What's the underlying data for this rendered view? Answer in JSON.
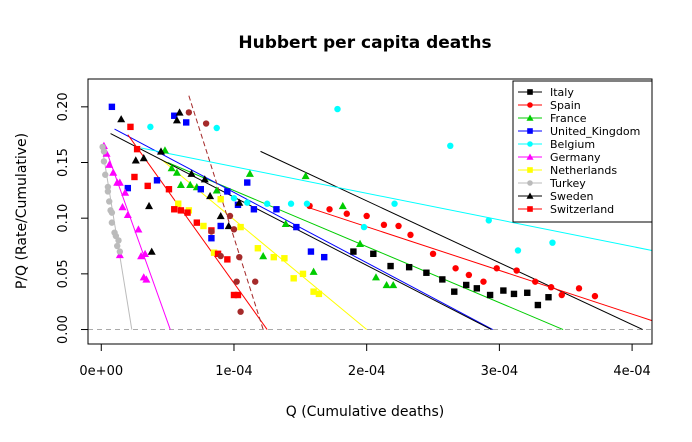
{
  "chart_data": {
    "type": "scatter",
    "title": "Hubbert per capita deaths",
    "xlabel": "Q (Cumulative deaths)",
    "ylabel": "P/Q (Rate/Cumulative)",
    "xlim": [
      -1e-05,
      0.000415
    ],
    "ylim": [
      -0.013,
      0.225
    ],
    "x_ticks": [
      0,
      0.0001,
      0.0002,
      0.0003,
      0.0004
    ],
    "x_tick_labels": [
      "0e+00",
      "1e-04",
      "2e-04",
      "3e-04",
      "4e-04"
    ],
    "y_ticks": [
      0,
      0.05,
      0.1,
      0.15,
      0.2
    ],
    "y_tick_labels": [
      "0.00",
      "0.05",
      "0.10",
      "0.15",
      "0.20"
    ],
    "zero_line": {
      "y": 0,
      "style": "dashed",
      "color": "#aaaaaa"
    },
    "grid": false,
    "legend_position": "top-right",
    "series": [
      {
        "name": "Italy",
        "color": "#000000",
        "marker": "square",
        "fit": {
          "x0": 0.00012,
          "y0": 0.16,
          "x1": 0.000408,
          "y1": 0.0,
          "style": "solid"
        },
        "points": [
          [
            0.00019,
            0.07
          ],
          [
            0.000205,
            0.068
          ],
          [
            0.000218,
            0.057
          ],
          [
            0.000232,
            0.056
          ],
          [
            0.000245,
            0.051
          ],
          [
            0.000257,
            0.045
          ],
          [
            0.000266,
            0.034
          ],
          [
            0.000275,
            0.04
          ],
          [
            0.000283,
            0.037
          ],
          [
            0.000293,
            0.031
          ],
          [
            0.000303,
            0.035
          ],
          [
            0.000311,
            0.032
          ],
          [
            0.000321,
            0.033
          ],
          [
            0.000329,
            0.022
          ],
          [
            0.000337,
            0.029
          ]
        ]
      },
      {
        "name": "Spain",
        "color": "#ff0000",
        "marker": "circle",
        "fit": {
          "x0": 0.000155,
          "y0": 0.11,
          "x1": 0.000415,
          "y1": 0.008,
          "style": "solid"
        },
        "points": [
          [
            0.000157,
            0.111
          ],
          [
            0.000172,
            0.108
          ],
          [
            0.000185,
            0.104
          ],
          [
            0.0002,
            0.102
          ],
          [
            0.000213,
            0.094
          ],
          [
            0.000224,
            0.093
          ],
          [
            0.000233,
            0.085
          ],
          [
            0.00025,
            0.068
          ],
          [
            0.000267,
            0.055
          ],
          [
            0.000277,
            0.049
          ],
          [
            0.000288,
            0.043
          ],
          [
            0.000298,
            0.055
          ],
          [
            0.000313,
            0.053
          ],
          [
            0.000327,
            0.043
          ],
          [
            0.000339,
            0.038
          ],
          [
            0.000347,
            0.031
          ],
          [
            0.00036,
            0.037
          ],
          [
            0.000372,
            0.03
          ]
        ]
      },
      {
        "name": "France",
        "color": "#00cc00",
        "marker": "triangle",
        "fit": {
          "x0": 5e-05,
          "y0": 0.15,
          "x1": 0.000348,
          "y1": 0.0,
          "style": "solid"
        },
        "points": [
          [
            4.8e-05,
            0.161
          ],
          [
            5.3e-05,
            0.145
          ],
          [
            5.7e-05,
            0.141
          ],
          [
            6e-05,
            0.13
          ],
          [
            6.7e-05,
            0.13
          ],
          [
            7.2e-05,
            0.128
          ],
          [
            8.7e-05,
            0.125
          ],
          [
            0.000112,
            0.14
          ],
          [
            0.000122,
            0.066
          ],
          [
            0.000139,
            0.095
          ],
          [
            0.000154,
            0.138
          ],
          [
            0.00016,
            0.052
          ],
          [
            0.000182,
            0.111
          ],
          [
            0.000195,
            0.077
          ],
          [
            0.000207,
            0.047
          ],
          [
            0.000215,
            0.04
          ],
          [
            0.00022,
            0.04
          ]
        ]
      },
      {
        "name": "United_Kingdom",
        "color": "#0000ff",
        "marker": "square",
        "fit": {
          "x0": 1e-05,
          "y0": 0.18,
          "x1": 0.000295,
          "y1": 0.0,
          "style": "solid"
        },
        "points": [
          [
            8e-06,
            0.2
          ],
          [
            2e-05,
            0.127
          ],
          [
            4.2e-05,
            0.134
          ],
          [
            5.5e-05,
            0.192
          ],
          [
            6.4e-05,
            0.186
          ],
          [
            7.5e-05,
            0.126
          ],
          [
            8.3e-05,
            0.082
          ],
          [
            9e-05,
            0.093
          ],
          [
            9.5e-05,
            0.124
          ],
          [
            0.000103,
            0.112
          ],
          [
            0.00011,
            0.132
          ],
          [
            0.000115,
            0.108
          ],
          [
            0.000132,
            0.108
          ],
          [
            0.000147,
            0.092
          ],
          [
            0.000158,
            0.07
          ],
          [
            0.000168,
            0.065
          ]
        ]
      },
      {
        "name": "Belgium",
        "color": "#00ffff",
        "marker": "circle",
        "fit": {
          "x0": 3e-05,
          "y0": 0.163,
          "x1": 0.000415,
          "y1": 0.071,
          "style": "solid"
        },
        "points": [
          [
            3.7e-05,
            0.182
          ],
          [
            8.7e-05,
            0.181
          ],
          [
            0.0001,
            0.118
          ],
          [
            0.00011,
            0.114
          ],
          [
            0.000125,
            0.113
          ],
          [
            0.000143,
            0.113
          ],
          [
            0.000155,
            0.113
          ],
          [
            0.000178,
            0.198
          ],
          [
            0.000198,
            0.092
          ],
          [
            0.000221,
            0.113
          ],
          [
            0.000263,
            0.165
          ],
          [
            0.000292,
            0.098
          ],
          [
            0.000314,
            0.071
          ],
          [
            0.00034,
            0.078
          ]
        ]
      },
      {
        "name": "Germany",
        "color": "#ff00ff",
        "marker": "triangle",
        "fit": {
          "x0": 2.5e-06,
          "y0": 0.165,
          "x1": 5.2e-05,
          "y1": 0.0,
          "style": "solid"
        },
        "points": [
          [
            2e-06,
            0.165
          ],
          [
            4e-06,
            0.158
          ],
          [
            6e-06,
            0.148
          ],
          [
            9e-06,
            0.141
          ],
          [
            1.2e-05,
            0.132
          ],
          [
            1.4e-05,
            0.132
          ],
          [
            1.6e-05,
            0.11
          ],
          [
            1.8e-05,
            0.123
          ],
          [
            2e-05,
            0.103
          ],
          [
            1.4e-05,
            0.067
          ],
          [
            2.8e-05,
            0.09
          ],
          [
            3e-05,
            0.066
          ],
          [
            3.3e-05,
            0.068
          ],
          [
            3.2e-05,
            0.047
          ],
          [
            3.4e-05,
            0.045
          ]
        ]
      },
      {
        "name": "Netherlands",
        "color": "#ffff00",
        "marker": "square",
        "fit": {
          "x0": 4.5e-05,
          "y0": 0.153,
          "x1": 0.0002,
          "y1": 0.0,
          "style": "solid"
        },
        "points": [
          [
            5.8e-05,
            0.113
          ],
          [
            6.6e-05,
            0.107
          ],
          [
            7.7e-05,
            0.093
          ],
          [
            8.5e-05,
            0.069
          ],
          [
            9e-05,
            0.117
          ],
          [
            0.000105,
            0.092
          ],
          [
            0.000118,
            0.073
          ],
          [
            0.00013,
            0.065
          ],
          [
            0.000138,
            0.064
          ],
          [
            0.000145,
            0.046
          ],
          [
            0.000152,
            0.05
          ],
          [
            0.00016,
            0.034
          ],
          [
            0.000164,
            0.032
          ]
        ]
      },
      {
        "name": "Turkey",
        "color": "#bbbbbb",
        "marker": "circle",
        "fit": {
          "x0": 5e-07,
          "y0": 0.165,
          "x1": 2.3e-05,
          "y1": 0.0,
          "style": "solid"
        },
        "points": [
          [
            1e-06,
            0.164
          ],
          [
            2e-06,
            0.16
          ],
          [
            2e-06,
            0.151
          ],
          [
            3e-06,
            0.139
          ],
          [
            5e-06,
            0.128
          ],
          [
            5e-06,
            0.124
          ],
          [
            6e-06,
            0.115
          ],
          [
            7e-06,
            0.107
          ],
          [
            8e-06,
            0.105
          ],
          [
            8e-06,
            0.096
          ],
          [
            1e-05,
            0.087
          ],
          [
            1.1e-05,
            0.084
          ],
          [
            1.2e-05,
            0.075
          ],
          [
            1.4e-05,
            0.07
          ],
          [
            1.3e-05,
            0.08
          ]
        ]
      },
      {
        "name": "Sweden",
        "color": "#000000",
        "marker": "triangle",
        "fit": {
          "x0": 7e-06,
          "y0": 0.176,
          "x1": 0.000294,
          "y1": 0.0,
          "style": "solid"
        },
        "points": [
          [
            1.5e-05,
            0.189
          ],
          [
            2.6e-05,
            0.152
          ],
          [
            3.2e-05,
            0.154
          ],
          [
            3.6e-05,
            0.111
          ],
          [
            3.8e-05,
            0.07
          ],
          [
            4.5e-05,
            0.16
          ],
          [
            5.7e-05,
            0.188
          ],
          [
            5.9e-05,
            0.195
          ],
          [
            6.8e-05,
            0.14
          ],
          [
            7.8e-05,
            0.135
          ],
          [
            8.2e-05,
            0.12
          ],
          [
            9e-05,
            0.102
          ],
          [
            9.6e-05,
            0.093
          ],
          [
            0.000104,
            0.114
          ]
        ]
      },
      {
        "name": "Switzerland",
        "color": "#ff0000",
        "marker": "square",
        "fit": {
          "x0": 2e-05,
          "y0": 0.175,
          "x1": 0.000125,
          "y1": 0.0,
          "style": "solid"
        },
        "points": [
          [
            2.2e-05,
            0.182
          ],
          [
            2.5e-05,
            0.137
          ],
          [
            2.7e-05,
            0.162
          ],
          [
            3.5e-05,
            0.129
          ],
          [
            5.1e-05,
            0.126
          ],
          [
            5.5e-05,
            0.108
          ],
          [
            6e-05,
            0.107
          ],
          [
            6.5e-05,
            0.105
          ],
          [
            7.2e-05,
            0.096
          ],
          [
            8.3e-05,
            0.089
          ],
          [
            8.8e-05,
            0.068
          ],
          [
            9.5e-05,
            0.063
          ],
          [
            0.0001,
            0.031
          ],
          [
            0.000103,
            0.031
          ]
        ]
      }
    ],
    "extra_series": [
      {
        "color": "#a52a2a",
        "marker": "circle",
        "fit": {
          "x0": 6.6e-05,
          "y0": 0.21,
          "x1": 0.000122,
          "y1": 0.0,
          "style": "dashed"
        },
        "points": [
          [
            6.6e-05,
            0.195
          ],
          [
            7.9e-05,
            0.185
          ],
          [
            8.3e-05,
            0.088
          ],
          [
            9e-05,
            0.066
          ],
          [
            9.7e-05,
            0.102
          ],
          [
            0.0001,
            0.09
          ],
          [
            0.000104,
            0.065
          ],
          [
            0.000102,
            0.043
          ],
          [
            0.000105,
            0.016
          ],
          [
            0.000116,
            0.043
          ]
        ]
      }
    ]
  }
}
